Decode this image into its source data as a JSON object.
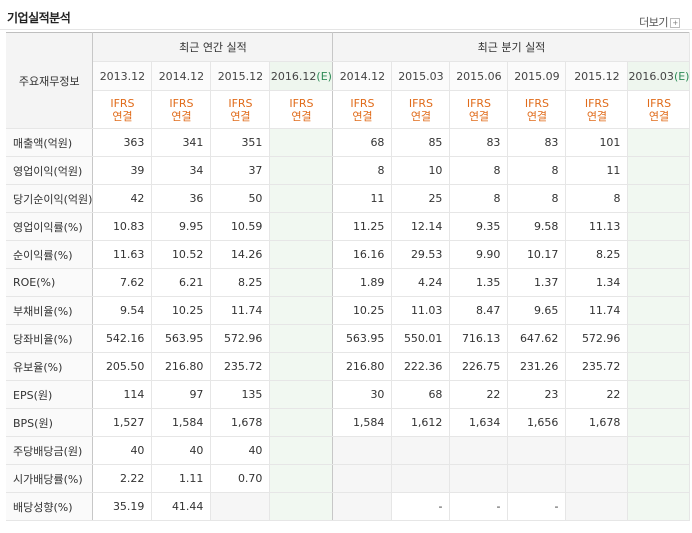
{
  "header": {
    "title": "기업실적분석",
    "more_label": "더보기",
    "more_icon": "plus-icon"
  },
  "table": {
    "row_header_label": "주요재무정보",
    "groups": {
      "annual": "최근 연간 실적",
      "quarterly": "최근 분기 실적"
    },
    "annual_periods": [
      {
        "label": "2013.12",
        "est": ""
      },
      {
        "label": "2014.12",
        "est": ""
      },
      {
        "label": "2015.12",
        "est": ""
      },
      {
        "label": "2016.12",
        "est": "(E)"
      }
    ],
    "quarterly_periods": [
      {
        "label": "2014.12",
        "est": ""
      },
      {
        "label": "2015.03",
        "est": ""
      },
      {
        "label": "2015.06",
        "est": ""
      },
      {
        "label": "2015.09",
        "est": ""
      },
      {
        "label": "2015.12",
        "est": ""
      },
      {
        "label": "2016.03",
        "est": "(E)"
      }
    ],
    "basis": {
      "line1": "IFRS",
      "line2": "연결"
    },
    "rows": [
      {
        "label": "매출액(억원)",
        "annual": [
          "363",
          "341",
          "351",
          ""
        ],
        "quarterly": [
          "68",
          "85",
          "83",
          "83",
          "101",
          ""
        ]
      },
      {
        "label": "영업이익(억원)",
        "annual": [
          "39",
          "34",
          "37",
          ""
        ],
        "quarterly": [
          "8",
          "10",
          "8",
          "8",
          "11",
          ""
        ]
      },
      {
        "label": "당기순이익(억원)",
        "annual": [
          "42",
          "36",
          "50",
          ""
        ],
        "quarterly": [
          "11",
          "25",
          "8",
          "8",
          "8",
          ""
        ]
      },
      {
        "label": "영업이익률(%)",
        "annual": [
          "10.83",
          "9.95",
          "10.59",
          ""
        ],
        "quarterly": [
          "11.25",
          "12.14",
          "9.35",
          "9.58",
          "11.13",
          ""
        ]
      },
      {
        "label": "순이익률(%)",
        "annual": [
          "11.63",
          "10.52",
          "14.26",
          ""
        ],
        "quarterly": [
          "16.16",
          "29.53",
          "9.90",
          "10.17",
          "8.25",
          ""
        ]
      },
      {
        "label": "ROE(%)",
        "annual": [
          "7.62",
          "6.21",
          "8.25",
          ""
        ],
        "quarterly": [
          "1.89",
          "4.24",
          "1.35",
          "1.37",
          "1.34",
          ""
        ]
      },
      {
        "label": "부채비율(%)",
        "annual": [
          "9.54",
          "10.25",
          "11.74",
          ""
        ],
        "quarterly": [
          "10.25",
          "11.03",
          "8.47",
          "9.65",
          "11.74",
          ""
        ]
      },
      {
        "label": "당좌비율(%)",
        "annual": [
          "542.16",
          "563.95",
          "572.96",
          ""
        ],
        "quarterly": [
          "563.95",
          "550.01",
          "716.13",
          "647.62",
          "572.96",
          ""
        ]
      },
      {
        "label": "유보율(%)",
        "annual": [
          "205.50",
          "216.80",
          "235.72",
          ""
        ],
        "quarterly": [
          "216.80",
          "222.36",
          "226.75",
          "231.26",
          "235.72",
          ""
        ]
      },
      {
        "label": "EPS(원)",
        "annual": [
          "114",
          "97",
          "135",
          ""
        ],
        "quarterly": [
          "30",
          "68",
          "22",
          "23",
          "22",
          ""
        ]
      },
      {
        "label": "BPS(원)",
        "annual": [
          "1,527",
          "1,584",
          "1,678",
          ""
        ],
        "quarterly": [
          "1,584",
          "1,612",
          "1,634",
          "1,656",
          "1,678",
          ""
        ]
      },
      {
        "label": "주당배당금(원)",
        "annual": [
          "40",
          "40",
          "40",
          ""
        ],
        "quarterly": [
          "",
          "",
          "",
          "",
          "",
          ""
        ]
      },
      {
        "label": "시가배당률(%)",
        "annual": [
          "2.22",
          "1.11",
          "0.70",
          ""
        ],
        "quarterly": [
          "",
          "",
          "",
          "",
          "",
          ""
        ]
      },
      {
        "label": "배당성향(%)",
        "annual": [
          "35.19",
          "41.44",
          "",
          ""
        ],
        "quarterly": [
          "",
          "-",
          "-",
          "-",
          "",
          ""
        ]
      }
    ]
  }
}
